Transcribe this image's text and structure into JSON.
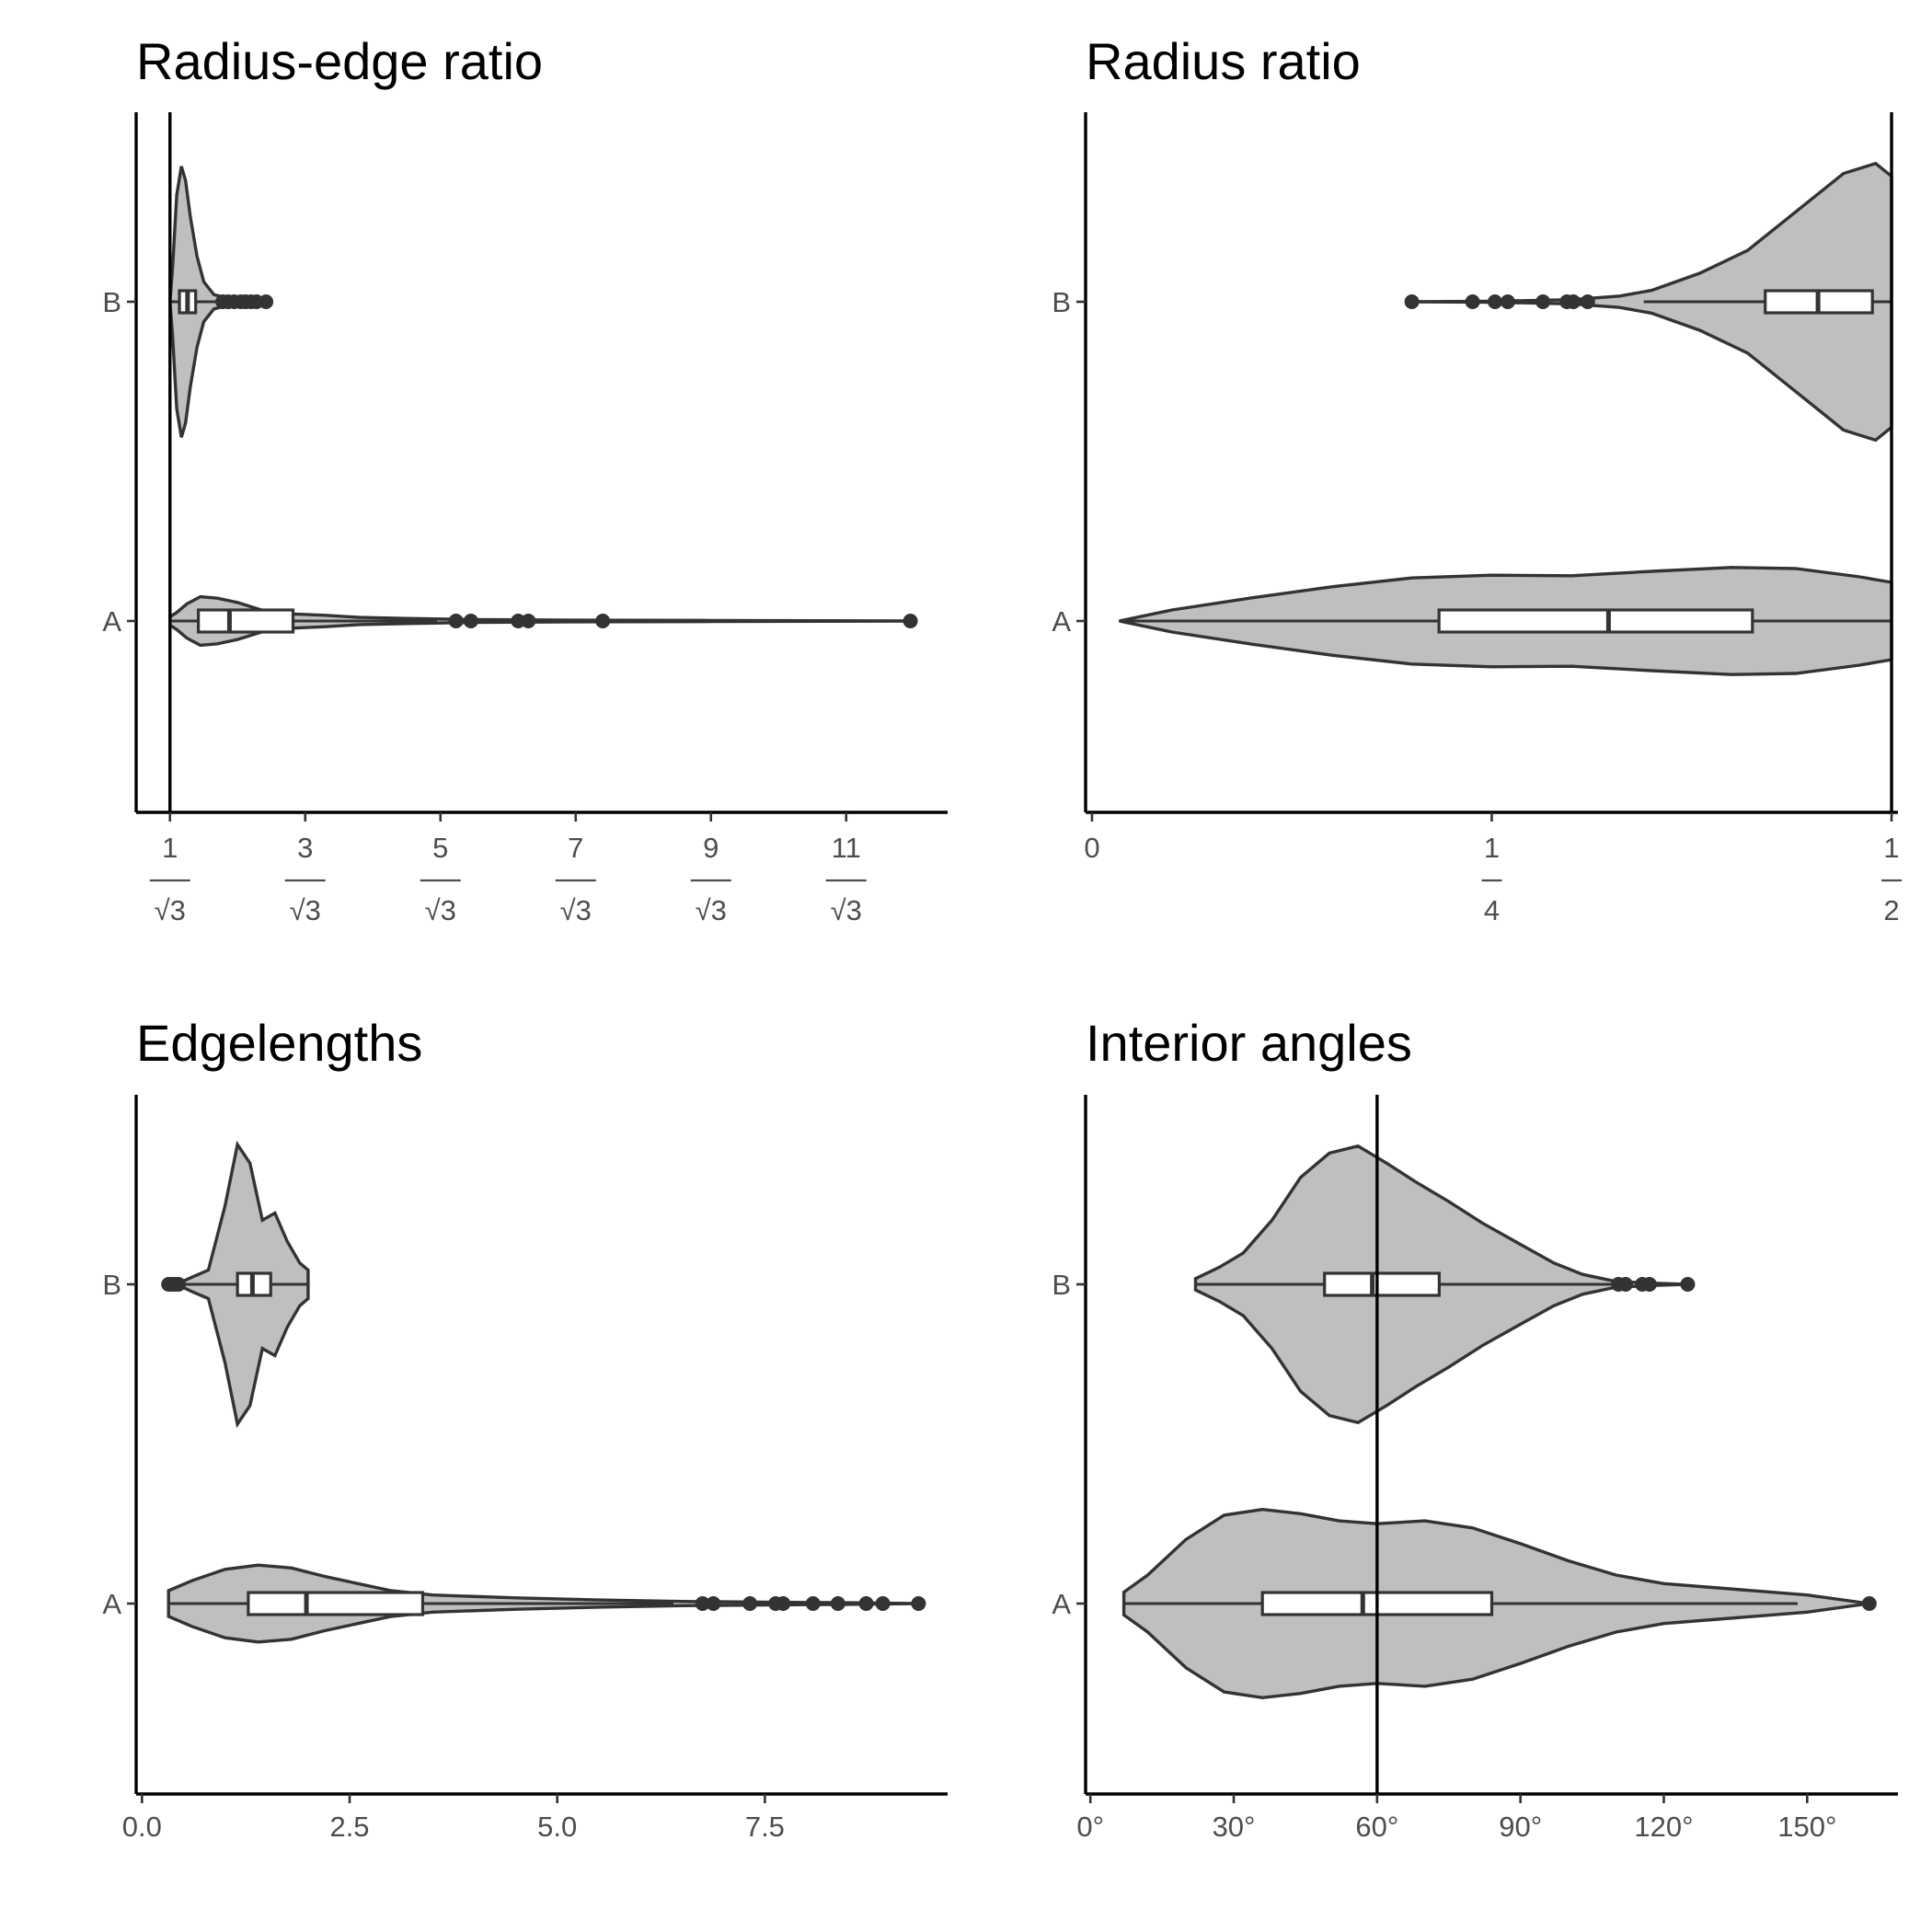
{
  "figure": {
    "background": "#ffffff",
    "violin_fill": "#bfbfbf",
    "line_color": "#333333"
  },
  "chart_data": [
    {
      "id": "radius_edge",
      "type": "violin",
      "title": "Radius-edge ratio",
      "xlabel": "",
      "ylabel": "",
      "x_unit": "multiples of 1/√3",
      "xlim": [
        0.5,
        12.5
      ],
      "x_ticks": [
        {
          "value": 1,
          "num": "1",
          "den": "√3"
        },
        {
          "value": 3,
          "num": "3",
          "den": "√3"
        },
        {
          "value": 5,
          "num": "5",
          "den": "√3"
        },
        {
          "value": 7,
          "num": "7",
          "den": "√3"
        },
        {
          "value": 9,
          "num": "9",
          "den": "√3"
        },
        {
          "value": 11,
          "num": "11",
          "den": "√3"
        }
      ],
      "categories": [
        "B",
        "A"
      ],
      "reference_line": 1,
      "groups": {
        "B": {
          "min": 1.0,
          "q1": 1.14,
          "median": 1.26,
          "q3": 1.38,
          "whisker_high": 1.75,
          "outliers": [
            1.78,
            1.86,
            1.95,
            2.05,
            2.12,
            2.2,
            2.28,
            2.42
          ],
          "violin_max": 2.42,
          "density": [
            [
              1.0,
              0.0
            ],
            [
              1.04,
              0.25
            ],
            [
              1.1,
              0.75
            ],
            [
              1.17,
              0.95
            ],
            [
              1.23,
              0.85
            ],
            [
              1.3,
              0.6
            ],
            [
              1.4,
              0.32
            ],
            [
              1.5,
              0.14
            ],
            [
              1.65,
              0.05
            ],
            [
              1.85,
              0.025
            ],
            [
              2.1,
              0.015
            ],
            [
              2.42,
              0.0
            ]
          ]
        },
        "A": {
          "min": 1.0,
          "q1": 1.42,
          "median": 1.88,
          "q3": 2.82,
          "whisker_high": 4.95,
          "outliers": [
            5.23,
            5.45,
            6.15,
            6.3,
            7.4,
            11.95
          ],
          "violin_max": 11.95,
          "density": [
            [
              1.0,
              0.03
            ],
            [
              1.1,
              0.06
            ],
            [
              1.25,
              0.12
            ],
            [
              1.45,
              0.17
            ],
            [
              1.7,
              0.16
            ],
            [
              2.0,
              0.13
            ],
            [
              2.4,
              0.07
            ],
            [
              2.8,
              0.05
            ],
            [
              3.3,
              0.04
            ],
            [
              3.8,
              0.025
            ],
            [
              4.5,
              0.018
            ],
            [
              5.5,
              0.01
            ],
            [
              7.0,
              0.006
            ],
            [
              9.0,
              0.004
            ],
            [
              11.95,
              0.0
            ]
          ]
        }
      }
    },
    {
      "id": "radius_ratio",
      "type": "violin",
      "title": "Radius ratio",
      "xlabel": "",
      "ylabel": "",
      "xlim": [
        -0.004,
        0.504
      ],
      "x_ticks": [
        {
          "value": 0,
          "label": "0"
        },
        {
          "value": 0.25,
          "num": "1",
          "den": "4"
        },
        {
          "value": 0.5,
          "num": "1",
          "den": "2"
        }
      ],
      "categories": [
        "B",
        "A"
      ],
      "reference_line": 0.5,
      "groups": {
        "B": {
          "min": 0.345,
          "q1": 0.421,
          "median": 0.454,
          "q3": 0.488,
          "whisker_high": 0.5,
          "outliers": [
            0.2,
            0.238,
            0.252,
            0.26,
            0.282,
            0.297,
            0.301,
            0.31
          ],
          "violin_min": 0.2,
          "density": [
            [
              0.2,
              0.0
            ],
            [
              0.25,
              0.003
            ],
            [
              0.3,
              0.015
            ],
            [
              0.33,
              0.04
            ],
            [
              0.35,
              0.08
            ],
            [
              0.38,
              0.2
            ],
            [
              0.41,
              0.36
            ],
            [
              0.44,
              0.63
            ],
            [
              0.47,
              0.9
            ],
            [
              0.49,
              0.97
            ],
            [
              0.5,
              0.88
            ]
          ]
        },
        "A": {
          "min": 0.017,
          "q1": 0.217,
          "median": 0.323,
          "q3": 0.413,
          "whisker_high": 0.5,
          "outliers": [],
          "violin_min": 0.017,
          "density": [
            [
              0.017,
              0.0
            ],
            [
              0.05,
              0.2
            ],
            [
              0.1,
              0.42
            ],
            [
              0.15,
              0.62
            ],
            [
              0.2,
              0.78
            ],
            [
              0.25,
              0.83
            ],
            [
              0.3,
              0.82
            ],
            [
              0.35,
              0.9
            ],
            [
              0.4,
              0.97
            ],
            [
              0.44,
              0.95
            ],
            [
              0.48,
              0.8
            ],
            [
              0.5,
              0.7
            ]
          ]
        }
      }
    },
    {
      "id": "edgelengths",
      "type": "violin",
      "title": "Edgelengths",
      "xlabel": "",
      "ylabel": "",
      "xlim": [
        -0.07,
        9.7
      ],
      "x_ticks": [
        {
          "value": 0,
          "label": "0.0"
        },
        {
          "value": 2.5,
          "label": "2.5"
        },
        {
          "value": 5,
          "label": "5.0"
        },
        {
          "value": 7.5,
          "label": "7.5"
        }
      ],
      "categories": [
        "B",
        "A"
      ],
      "groups": {
        "B": {
          "min": 0.48,
          "q1": 1.15,
          "median": 1.33,
          "q3": 1.55,
          "whisker_high": 2.0,
          "outliers": [
            0.32,
            0.36,
            0.4,
            0.44
          ],
          "violin_min": 0.32,
          "density": [
            [
              0.32,
              0.0
            ],
            [
              0.45,
              0.01
            ],
            [
              0.6,
              0.05
            ],
            [
              0.8,
              0.1
            ],
            [
              1.0,
              0.55
            ],
            [
              1.15,
              0.98
            ],
            [
              1.3,
              0.85
            ],
            [
              1.45,
              0.45
            ],
            [
              1.6,
              0.5
            ],
            [
              1.75,
              0.3
            ],
            [
              1.9,
              0.15
            ],
            [
              2.0,
              0.1
            ]
          ]
        },
        "A": {
          "min": 0.32,
          "q1": 1.28,
          "median": 1.98,
          "q3": 3.38,
          "whisker_high": 6.4,
          "outliers": [
            6.75,
            6.88,
            7.32,
            7.63,
            7.72,
            8.08,
            8.38,
            8.72,
            8.92,
            9.35
          ],
          "violin_max": 9.35,
          "density": [
            [
              0.32,
              0.09
            ],
            [
              0.6,
              0.16
            ],
            [
              1.0,
              0.24
            ],
            [
              1.4,
              0.27
            ],
            [
              1.8,
              0.25
            ],
            [
              2.2,
              0.19
            ],
            [
              2.6,
              0.14
            ],
            [
              3.0,
              0.09
            ],
            [
              3.5,
              0.06
            ],
            [
              4.5,
              0.04
            ],
            [
              5.5,
              0.025
            ],
            [
              6.5,
              0.015
            ],
            [
              7.5,
              0.01
            ],
            [
              8.5,
              0.006
            ],
            [
              9.35,
              0.0
            ]
          ]
        }
      }
    },
    {
      "id": "interior_angles",
      "type": "violin",
      "title": "Interior angles",
      "xlabel": "",
      "ylabel": "",
      "x_unit": "degrees",
      "xlim": [
        -1,
        169
      ],
      "x_ticks": [
        {
          "value": 0,
          "label": "0°"
        },
        {
          "value": 30,
          "label": "30°"
        },
        {
          "value": 60,
          "label": "60°"
        },
        {
          "value": 90,
          "label": "90°"
        },
        {
          "value": 120,
          "label": "120°"
        },
        {
          "value": 150,
          "label": "150°"
        }
      ],
      "categories": [
        "B",
        "A"
      ],
      "reference_line": 60,
      "groups": {
        "B": {
          "min": 22,
          "q1": 49,
          "median": 59,
          "q3": 73,
          "whisker_high": 109,
          "outliers": [
            110.5,
            112,
            115.5,
            117,
            125
          ],
          "violin_max": 125,
          "density": [
            [
              22,
              0.04
            ],
            [
              27,
              0.12
            ],
            [
              32,
              0.22
            ],
            [
              38,
              0.45
            ],
            [
              44,
              0.75
            ],
            [
              50,
              0.92
            ],
            [
              56,
              0.97
            ],
            [
              62,
              0.85
            ],
            [
              68,
              0.72
            ],
            [
              75,
              0.58
            ],
            [
              82,
              0.43
            ],
            [
              90,
              0.28
            ],
            [
              97,
              0.15
            ],
            [
              103,
              0.07
            ],
            [
              110,
              0.02
            ],
            [
              118,
              0.008
            ],
            [
              125,
              0.0
            ]
          ]
        },
        "A": {
          "min": 7,
          "q1": 36,
          "median": 57,
          "q3": 84,
          "whisker_high": 148,
          "outliers": [
            163
          ],
          "violin_max": 163,
          "density": [
            [
              7,
              0.08
            ],
            [
              12,
              0.2
            ],
            [
              20,
              0.45
            ],
            [
              28,
              0.62
            ],
            [
              36,
              0.66
            ],
            [
              44,
              0.63
            ],
            [
              52,
              0.58
            ],
            [
              60,
              0.56
            ],
            [
              70,
              0.58
            ],
            [
              80,
              0.53
            ],
            [
              90,
              0.42
            ],
            [
              100,
              0.3
            ],
            [
              110,
              0.2
            ],
            [
              120,
              0.14
            ],
            [
              135,
              0.1
            ],
            [
              150,
              0.06
            ],
            [
              163,
              0.0
            ]
          ]
        }
      }
    }
  ]
}
